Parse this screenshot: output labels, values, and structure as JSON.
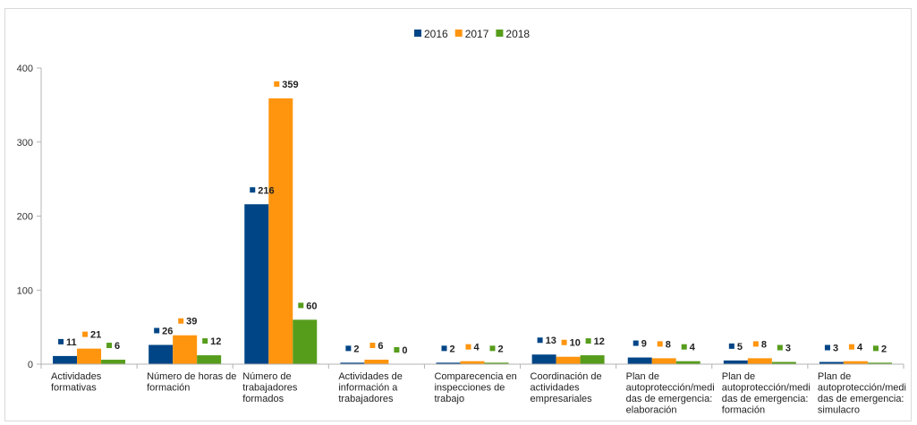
{
  "chart_data": {
    "type": "bar",
    "title": "",
    "xlabel": "",
    "ylabel": "",
    "ylim": [
      0,
      400
    ],
    "yticks": [
      0,
      100,
      200,
      300,
      400
    ],
    "grid": false,
    "legend_position": "top-center",
    "categories": [
      [
        "Actividades",
        "formativas"
      ],
      [
        "Número de horas de",
        "formación"
      ],
      [
        "Número de",
        "trabajadores",
        "formados"
      ],
      [
        "Actividades de",
        "información a",
        "trabajadores"
      ],
      [
        "Comparecencia en",
        "inspecciones de",
        "trabajo"
      ],
      [
        "Coordinación de",
        "actividades",
        "empresariales"
      ],
      [
        "Plan de",
        "autoprotección/medi",
        "das de emergencia:",
        "elaboración"
      ],
      [
        "Plan de",
        "autoprotección/medi",
        "das de emergencia:",
        "formación"
      ],
      [
        "Plan de",
        "autoprotección/medi",
        "das de emergencia:",
        "simulacro"
      ]
    ],
    "series": [
      {
        "name": "2016",
        "color": "#004586",
        "values": [
          11,
          26,
          216,
          2,
          2,
          13,
          9,
          5,
          3
        ]
      },
      {
        "name": "2017",
        "color": "#ff950e",
        "values": [
          21,
          39,
          359,
          6,
          4,
          10,
          8,
          8,
          4
        ]
      },
      {
        "name": "2018",
        "color": "#579d1c",
        "values": [
          6,
          12,
          60,
          0,
          2,
          12,
          4,
          3,
          2
        ]
      }
    ]
  }
}
